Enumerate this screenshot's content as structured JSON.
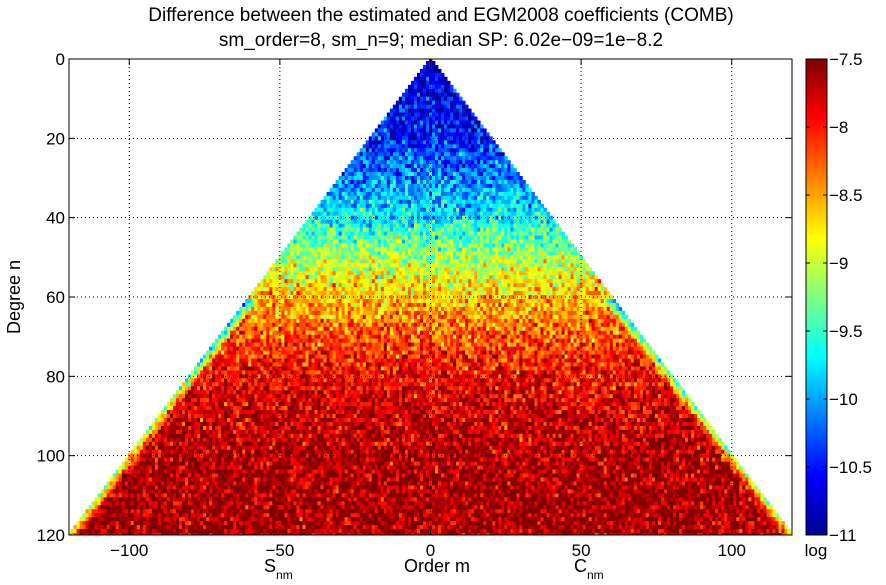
{
  "chart_data": {
    "type": "heatmap",
    "title": [
      "Difference between the estimated and EGM2008 coefficients (COMB)",
      "sm_order=8, sm_n=9; median SP: 6.02e−09=1e−8.2"
    ],
    "xlabel": "Order m",
    "ylabel": "Degree n",
    "x_side_labels": {
      "left": {
        "main": "S",
        "sub": "nm"
      },
      "right": {
        "main": "C",
        "sub": "nm"
      }
    },
    "xlim": [
      -120,
      120
    ],
    "ylim": [
      0,
      120
    ],
    "y_direction": "reverse",
    "xticks": [
      -100,
      -50,
      0,
      50,
      100
    ],
    "xtick_labels": [
      "−100",
      "−50",
      "0",
      "50",
      "100"
    ],
    "yticks": [
      0,
      20,
      40,
      60,
      80,
      100,
      120
    ],
    "ytick_labels": [
      "0",
      "20",
      "40",
      "60",
      "80",
      "100",
      "120"
    ],
    "grid": true,
    "colorbar": {
      "label": "log",
      "range": [
        -11,
        -7.5
      ],
      "ticks": [
        -11,
        -10.5,
        -10,
        -9.5,
        -9,
        -8.5,
        -8,
        -7.5
      ],
      "tick_labels": [
        "−11",
        "−10.5",
        "−10",
        "−9.5",
        "−9",
        "−8.5",
        "−8",
        "−7.5"
      ],
      "colormap": "jet"
    },
    "mean_log_by_degree": {
      "n": [
        0,
        10,
        20,
        30,
        40,
        50,
        60,
        70,
        80,
        90,
        100,
        110,
        120
      ],
      "value": [
        -10.8,
        -10.6,
        -10.5,
        -10.1,
        -9.7,
        -9.1,
        -8.6,
        -8.2,
        -7.9,
        -7.75,
        -7.65,
        -7.6,
        -7.6
      ]
    },
    "support": "triangle |m| <= n"
  }
}
